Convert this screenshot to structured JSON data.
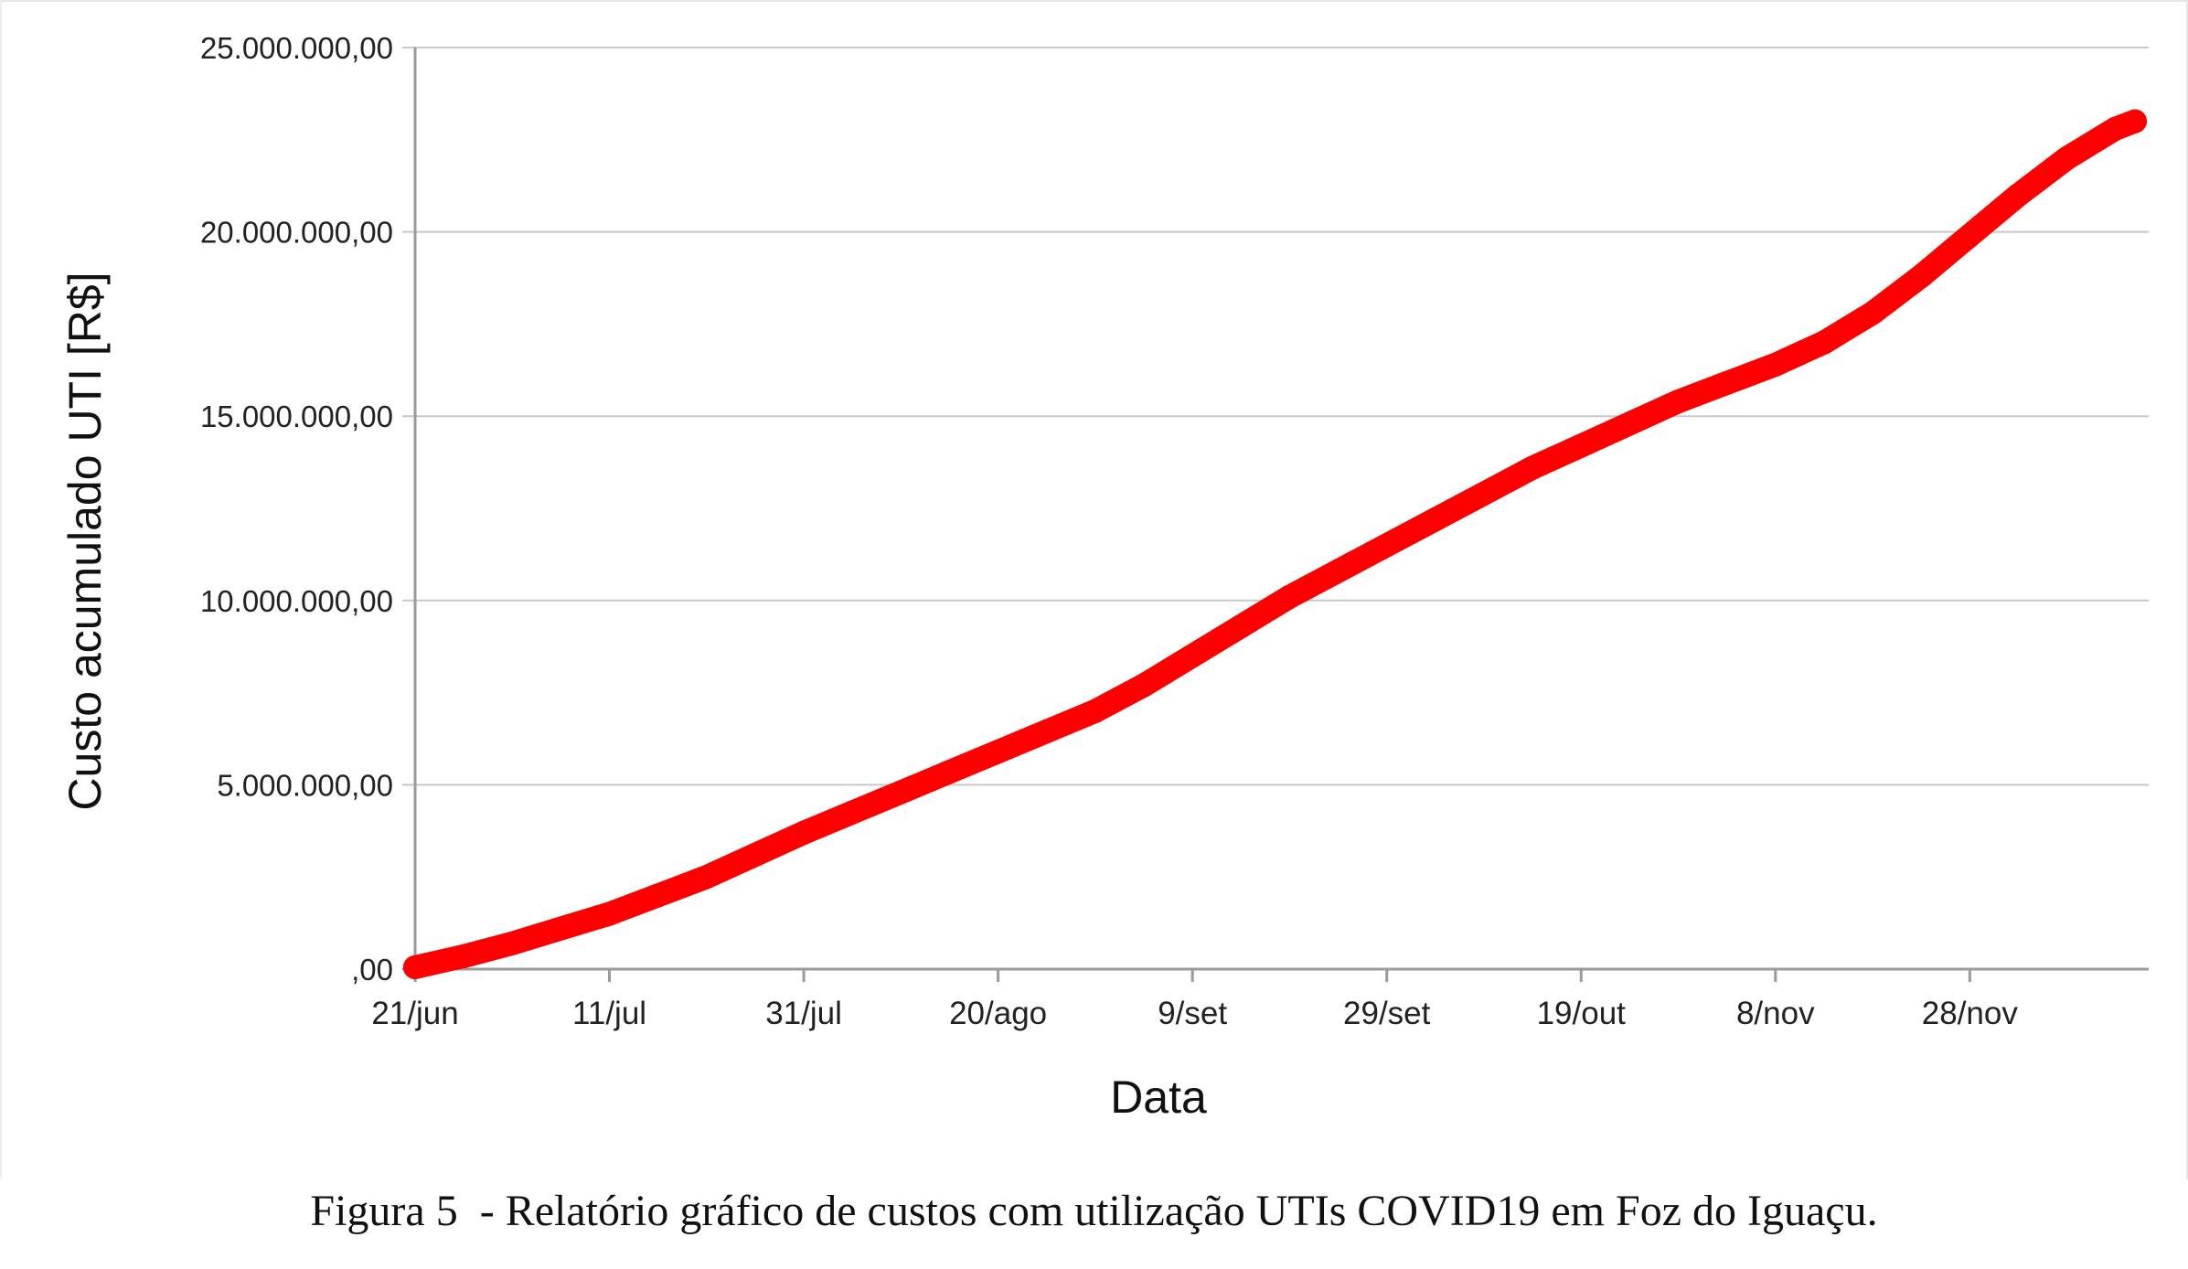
{
  "chart_data": {
    "type": "line",
    "xlabel": "Data",
    "ylabel": "Custo acumulado UTI [R$]",
    "ylim": [
      0,
      25000000
    ],
    "y_ticks": [
      {
        "value": 0,
        "label": ",00"
      },
      {
        "value": 5000000,
        "label": "5.000.000,00"
      },
      {
        "value": 10000000,
        "label": "10.000.000,00"
      },
      {
        "value": 15000000,
        "label": "15.000.000,00"
      },
      {
        "value": 20000000,
        "label": "20.000.000,00"
      },
      {
        "value": 25000000,
        "label": "25.000.000,00"
      }
    ],
    "xlim": [
      "2020-06-21",
      "2020-12-15"
    ],
    "x_ticks": [
      {
        "date": "2020-06-21",
        "label": "21/jun"
      },
      {
        "date": "2020-07-11",
        "label": "11/jul"
      },
      {
        "date": "2020-07-31",
        "label": "31/jul"
      },
      {
        "date": "2020-08-20",
        "label": "20/ago"
      },
      {
        "date": "2020-09-09",
        "label": "9/set"
      },
      {
        "date": "2020-09-29",
        "label": "29/set"
      },
      {
        "date": "2020-10-19",
        "label": "19/out"
      },
      {
        "date": "2020-11-08",
        "label": "8/nov"
      },
      {
        "date": "2020-11-28",
        "label": "28/nov"
      }
    ],
    "grid": true,
    "series": [
      {
        "color": "#ff0000",
        "x": [
          "2020-06-21",
          "2020-06-26",
          "2020-07-01",
          "2020-07-06",
          "2020-07-11",
          "2020-07-16",
          "2020-07-21",
          "2020-07-26",
          "2020-07-31",
          "2020-08-05",
          "2020-08-10",
          "2020-08-15",
          "2020-08-20",
          "2020-08-25",
          "2020-08-30",
          "2020-09-04",
          "2020-09-09",
          "2020-09-14",
          "2020-09-19",
          "2020-09-24",
          "2020-09-29",
          "2020-10-04",
          "2020-10-09",
          "2020-10-14",
          "2020-10-19",
          "2020-10-24",
          "2020-10-29",
          "2020-11-03",
          "2020-11-08",
          "2020-11-13",
          "2020-11-18",
          "2020-11-23",
          "2020-11-28",
          "2020-12-03",
          "2020-12-08",
          "2020-12-13",
          "2020-12-15"
        ],
        "y": [
          50000,
          350000,
          700000,
          1100000,
          1500000,
          2000000,
          2500000,
          3100000,
          3700000,
          4250000,
          4800000,
          5350000,
          5900000,
          6450000,
          7000000,
          7700000,
          8500000,
          9300000,
          10100000,
          10800000,
          11500000,
          12200000,
          12900000,
          13600000,
          14200000,
          14800000,
          15400000,
          15900000,
          16400000,
          17000000,
          17800000,
          18800000,
          19900000,
          21000000,
          22000000,
          22800000,
          23000000
        ]
      }
    ]
  },
  "caption": "Figura 5  - Relatório gráfico de custos com utilização UTIs COVID19 em Foz do Iguaçu."
}
